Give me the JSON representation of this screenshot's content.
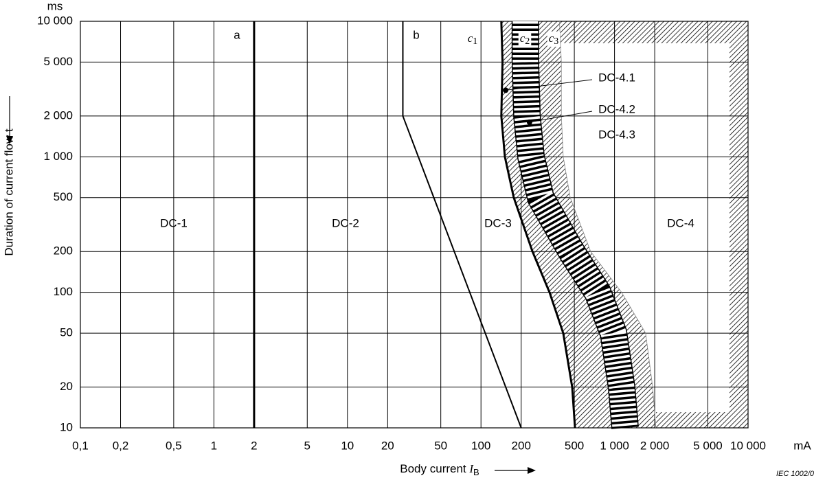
{
  "chart_data": {
    "type": "line",
    "log_x": true,
    "log_y": true,
    "grid": true,
    "xlim": [
      0.1,
      10000
    ],
    "ylim": [
      10,
      10000
    ],
    "xticks": [
      {
        "value": 0.1,
        "label": "0,1"
      },
      {
        "value": 0.2,
        "label": "0,2"
      },
      {
        "value": 0.5,
        "label": "0,5"
      },
      1,
      2,
      5,
      10,
      20,
      50,
      100,
      200,
      500,
      {
        "value": 1000,
        "label": "1 000"
      },
      {
        "value": 2000,
        "label": "2 000"
      },
      {
        "value": 5000,
        "label": "5 000"
      },
      {
        "value": 10000,
        "label": "10 000"
      }
    ],
    "yticks": [
      10,
      20,
      50,
      100,
      200,
      500,
      {
        "value": 1000,
        "label": "1 000"
      },
      {
        "value": 2000,
        "label": "2 000"
      },
      {
        "value": 5000,
        "label": "5 000"
      },
      {
        "value": 10000,
        "label": "10 000"
      }
    ],
    "x_unit": "mA",
    "y_unit": "ms",
    "x_label": "Body current IB",
    "y_label": "Duration of current flow t",
    "series": [
      {
        "name": "a",
        "color": "#000000",
        "x": [
          2,
          2
        ],
        "values": [
          10,
          10000
        ]
      },
      {
        "name": "b",
        "color": "#000000",
        "x": [
          26,
          26,
          200
        ],
        "values": [
          10000,
          2000,
          10
        ]
      },
      {
        "name": "c1",
        "color": "#000000",
        "x": [
          142,
          145,
          142,
          151,
          176,
          243,
          326,
          413,
          482,
          506
        ],
        "values": [
          10000,
          5000,
          2000,
          1000,
          500,
          200,
          100,
          50,
          20,
          10
        ]
      },
      {
        "name": "c2",
        "color": "#000000",
        "x": [
          215,
          215,
          221,
          237,
          280,
          476,
          747,
          982,
          1130,
          1200
        ],
        "values": [
          10000,
          5000,
          2000,
          1000,
          500,
          200,
          100,
          50,
          20,
          10
        ]
      },
      {
        "name": "c3",
        "color": "#888888",
        "x": [
          387,
          400,
          400,
          413,
          466,
          663,
          1130,
          1710,
          1930,
          2040
        ],
        "values": [
          10000,
          5000,
          2000,
          1000,
          500,
          200,
          100,
          50,
          20,
          10
        ]
      }
    ],
    "zones": [
      "DC-1",
      "DC-2",
      "DC-3",
      "DC-4"
    ],
    "subzones": [
      {
        "label": "DC-4.1",
        "x": 153,
        "y": 3100
      },
      {
        "label": "DC-4.2",
        "x": 231,
        "y": 1800
      },
      {
        "label": "DC-4.3"
      }
    ],
    "source": "IEC   1002/0"
  }
}
